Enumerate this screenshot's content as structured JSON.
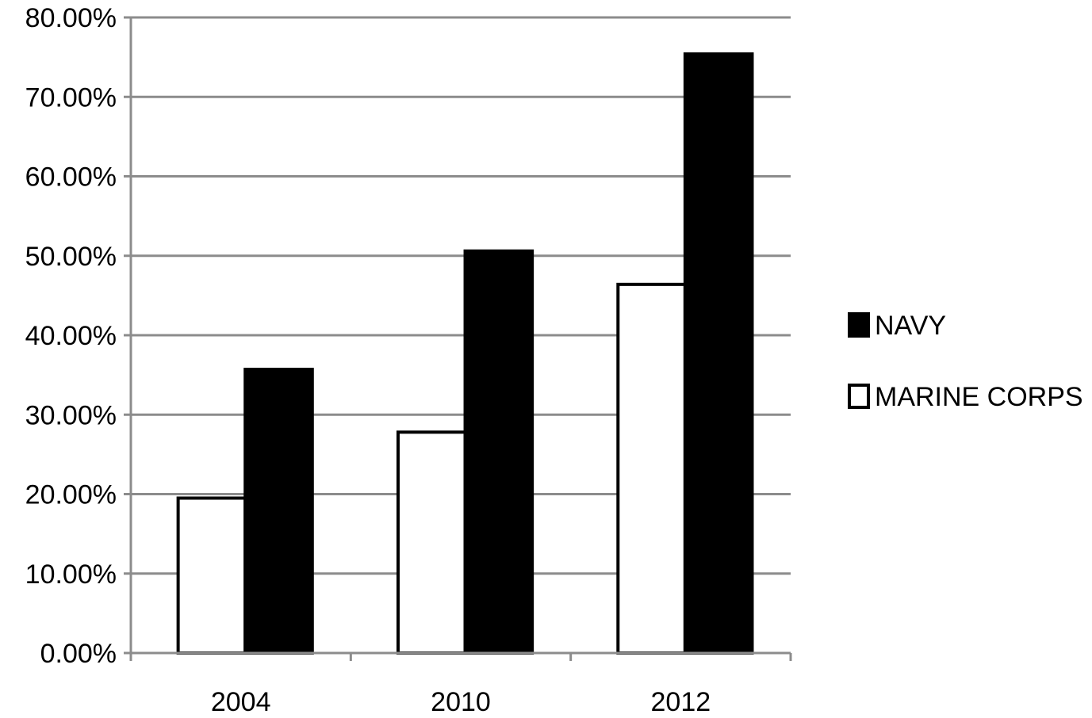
{
  "chart_data": {
    "type": "bar",
    "categories": [
      "2004",
      "2010",
      "2012"
    ],
    "series": [
      {
        "name": "MARINE CORPS",
        "values": [
          19.5,
          27.8,
          46.4
        ],
        "fill": "#ffffff",
        "stroke": "#000000"
      },
      {
        "name": "NAVY",
        "values": [
          35.7,
          50.6,
          75.4
        ],
        "fill": "#000000",
        "stroke": "#000000"
      }
    ],
    "ylim": [
      0,
      80
    ],
    "yticks": [
      "0.00%",
      "10.00%",
      "20.00%",
      "30.00%",
      "40.00%",
      "50.00%",
      "60.00%",
      "70.00%",
      "80.00%"
    ],
    "legend": {
      "position": "right",
      "order": [
        "NAVY",
        "MARINE CORPS"
      ]
    },
    "grid": true,
    "title": "",
    "xlabel": "",
    "ylabel": ""
  }
}
